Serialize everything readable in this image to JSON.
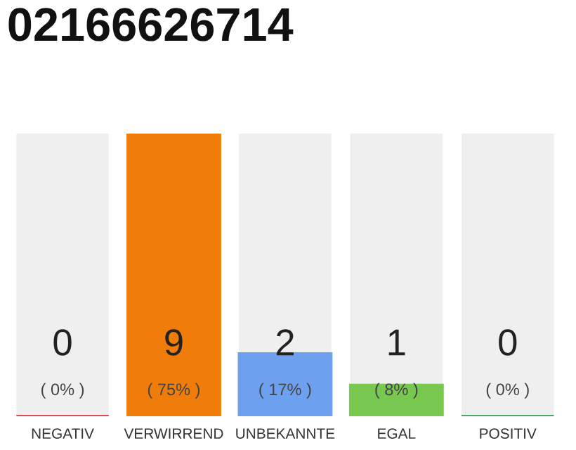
{
  "chart_data": {
    "type": "bar",
    "title": "02166626714",
    "categories": [
      "NEGATIV",
      "VERWIRREND",
      "UNBEKANNTE",
      "EGAL",
      "POSITIV"
    ],
    "values": [
      0,
      9,
      2,
      1,
      0
    ],
    "colors": [
      "#e8283c",
      "#f07d0a",
      "#6ea0f0",
      "#78c850",
      "#28a050"
    ],
    "ylim": [
      0,
      9
    ],
    "data_labels": true,
    "grid": false,
    "tick_labels": "x",
    "annotations": [
      "( 0% )",
      "( 75% )",
      "( 17% )",
      "( 8% )",
      "( 0% )"
    ]
  }
}
